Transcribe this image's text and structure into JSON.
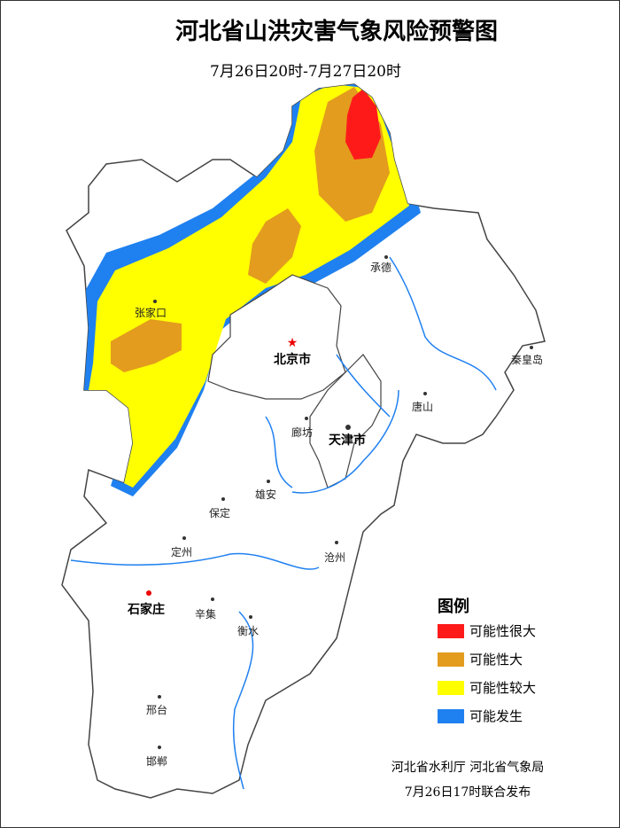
{
  "header": {
    "title": "河北省山洪灾害气象风险预警图",
    "subtitle": "7月26日20时-7月27日20时"
  },
  "cities": [
    "承德",
    "张家口",
    "北京市",
    "秦皇岛",
    "唐山",
    "廊坊",
    "天津市",
    "雄安",
    "保定",
    "定州",
    "沧州",
    "石家庄",
    "辛集",
    "衡水",
    "邢台",
    "邯郸"
  ],
  "legend": {
    "title": "图例",
    "items": [
      {
        "label": "可能性很大",
        "color": "#ff1a1a"
      },
      {
        "label": "可能性大",
        "color": "#e39c1e"
      },
      {
        "label": "可能性较大",
        "color": "#ffff00"
      },
      {
        "label": "可能发生",
        "color": "#1f80f0"
      }
    ]
  },
  "footer": {
    "issuer": "河北省水利厅  河北省气象局",
    "issued": "7月26日17时联合发布"
  }
}
